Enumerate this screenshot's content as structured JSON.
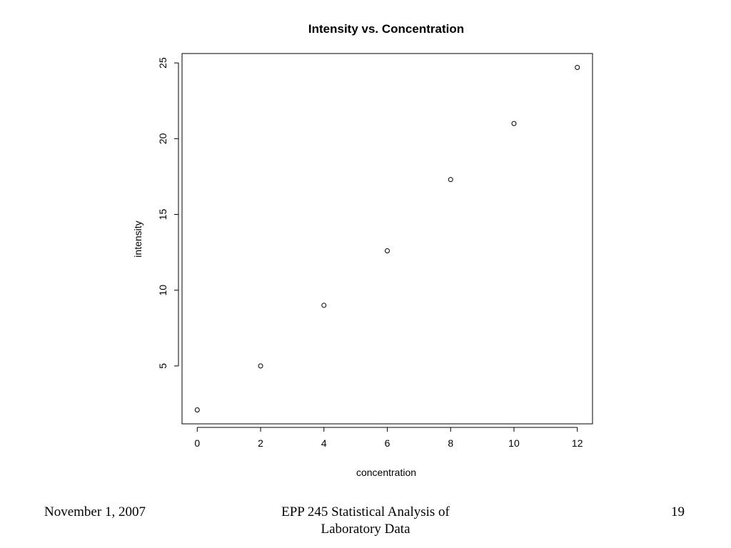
{
  "chart_data": {
    "type": "scatter",
    "title": "Intensity vs. Concentration",
    "xlabel": "concentration",
    "ylabel": "intensity",
    "x": [
      0,
      2,
      4,
      6,
      8,
      10,
      12
    ],
    "y": [
      2.1,
      5.0,
      9.0,
      12.6,
      17.3,
      21.0,
      24.7
    ],
    "xticks": [
      "0",
      "2",
      "4",
      "6",
      "8",
      "10",
      "12"
    ],
    "yticks": [
      "5",
      "10",
      "15",
      "20",
      "25"
    ],
    "xlim": [
      -0.48,
      12.48
    ],
    "ylim": [
      1.18,
      25.62
    ],
    "grid": false,
    "marker": "open-circle"
  },
  "footer": {
    "date": "November 1, 2007",
    "title": "EPP 245 Statistical Analysis of Laboratory Data",
    "page": "19"
  }
}
